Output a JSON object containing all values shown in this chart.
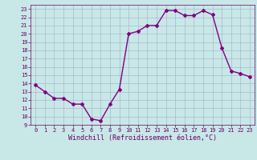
{
  "x": [
    0,
    1,
    2,
    3,
    4,
    5,
    6,
    7,
    8,
    9,
    10,
    11,
    12,
    13,
    14,
    15,
    16,
    17,
    18,
    19,
    20,
    21,
    22,
    23
  ],
  "y": [
    13.8,
    13.0,
    12.2,
    12.2,
    11.5,
    11.5,
    9.7,
    9.5,
    11.5,
    13.3,
    20.0,
    20.3,
    21.0,
    21.0,
    22.8,
    22.8,
    22.2,
    22.2,
    22.8,
    22.3,
    18.3,
    15.5,
    15.2,
    14.8
  ],
  "line_color": "#800080",
  "marker": "D",
  "marker_size": 2.0,
  "bg_color": "#c8e8e8",
  "grid_color": "#aab8cc",
  "xlabel": "Windchill (Refroidissement éolien,°C)",
  "xlim": [
    -0.5,
    23.5
  ],
  "ylim": [
    9,
    23.5
  ],
  "yticks": [
    9,
    10,
    11,
    12,
    13,
    14,
    15,
    16,
    17,
    18,
    19,
    20,
    21,
    22,
    23
  ],
  "xticks": [
    0,
    1,
    2,
    3,
    4,
    5,
    6,
    7,
    8,
    9,
    10,
    11,
    12,
    13,
    14,
    15,
    16,
    17,
    18,
    19,
    20,
    21,
    22,
    23
  ],
  "label_fontsize": 6.0,
  "tick_fontsize": 5.0,
  "line_width": 1.0,
  "text_color": "#660066"
}
